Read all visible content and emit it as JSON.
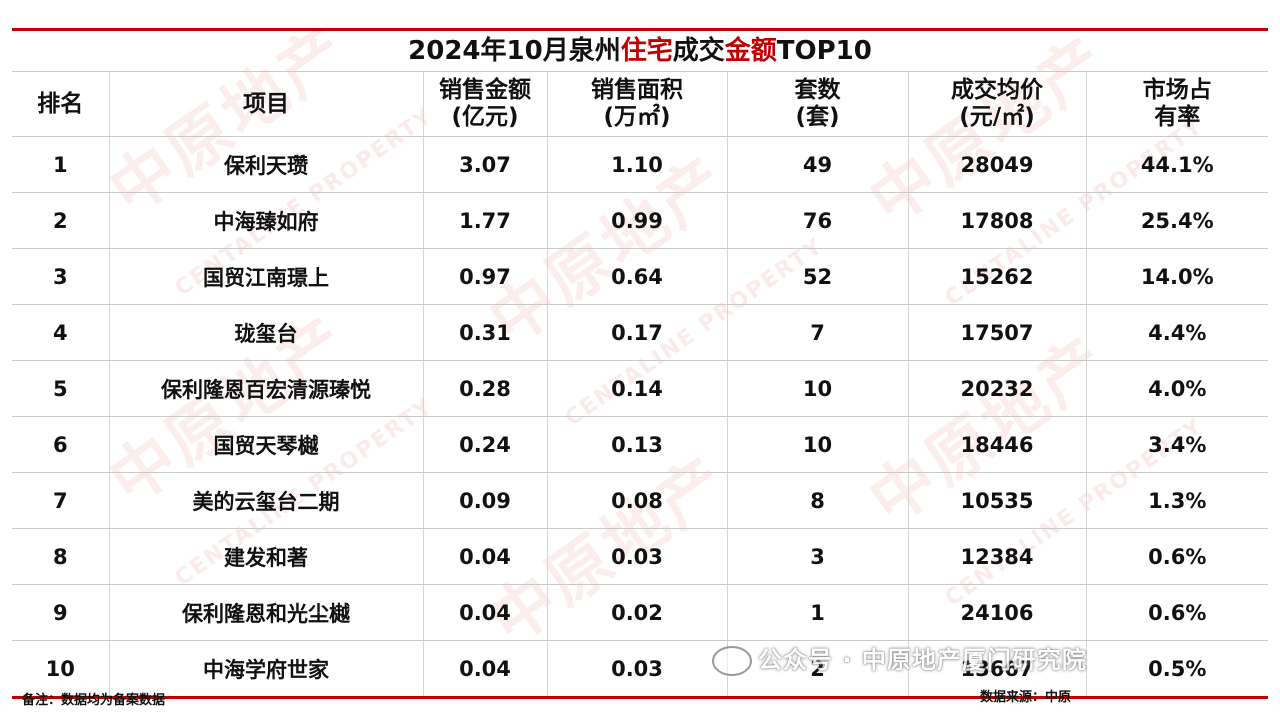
{
  "title": {
    "prefix": "2024年10月泉州",
    "hl1": "住宅",
    "mid": "成交",
    "hl2": "金额",
    "suffix": "TOP10"
  },
  "colors": {
    "accent": "#c00000",
    "watermark": "#e4585d"
  },
  "chart_data": {
    "type": "table",
    "columns": [
      {
        "l1": "排名",
        "l2": ""
      },
      {
        "l1": "项目",
        "l2": ""
      },
      {
        "l1": "销售金额",
        "l2": "(亿元)"
      },
      {
        "l1": "销售面积",
        "l2": "(万㎡)"
      },
      {
        "l1": "套数",
        "l2": "(套)"
      },
      {
        "l1": "成交均价",
        "l2": "(元/㎡)"
      },
      {
        "l1": "市场占",
        "l2": "有率"
      }
    ],
    "rows": [
      [
        "1",
        "保利天瓒",
        "3.07",
        "1.10",
        "49",
        "28049",
        "44.1%"
      ],
      [
        "2",
        "中海臻如府",
        "1.77",
        "0.99",
        "76",
        "17808",
        "25.4%"
      ],
      [
        "3",
        "国贸江南璟上",
        "0.97",
        "0.64",
        "52",
        "15262",
        "14.0%"
      ],
      [
        "4",
        "珑玺台",
        "0.31",
        "0.17",
        "7",
        "17507",
        "4.4%"
      ],
      [
        "5",
        "保利隆恩百宏清源瑧悦",
        "0.28",
        "0.14",
        "10",
        "20232",
        "4.0%"
      ],
      [
        "6",
        "国贸天琴樾",
        "0.24",
        "0.13",
        "10",
        "18446",
        "3.4%"
      ],
      [
        "7",
        "美的云玺台二期",
        "0.09",
        "0.08",
        "8",
        "10535",
        "1.3%"
      ],
      [
        "8",
        "建发和著",
        "0.04",
        "0.03",
        "3",
        "12384",
        "0.6%"
      ],
      [
        "9",
        "保利隆恩和光尘樾",
        "0.04",
        "0.02",
        "1",
        "24106",
        "0.6%"
      ],
      [
        "10",
        "中海学府世家",
        "0.04",
        "0.03",
        "2",
        "13667",
        "0.5%"
      ]
    ]
  },
  "footer": {
    "note": "备注：数据均为备案数据",
    "source": "数据来源：中原"
  },
  "watermark": {
    "cn": "中原地产",
    "en": "CENTALINE PROPERTY",
    "wechat": "公众号 · 中原地产厦门研究院"
  }
}
